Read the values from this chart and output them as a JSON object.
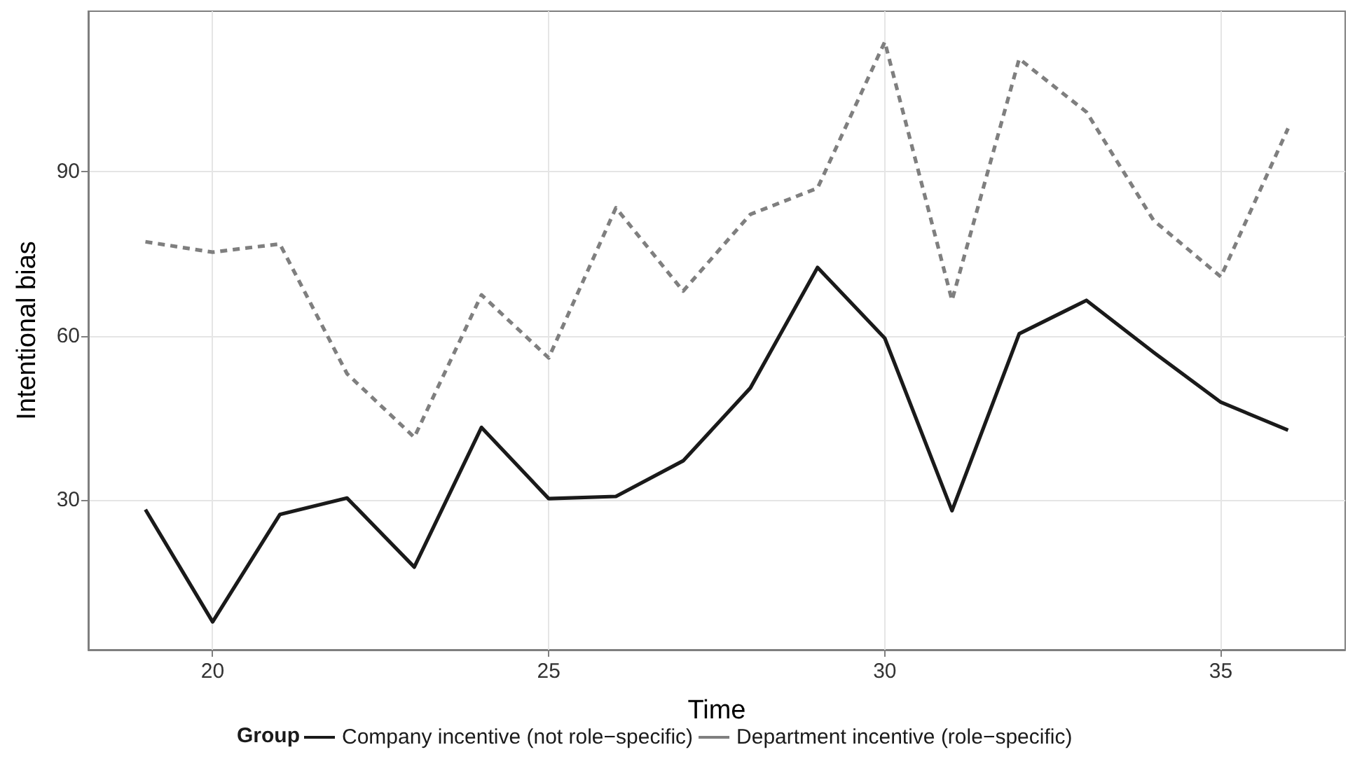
{
  "chart_data": {
    "type": "line",
    "xlabel": "Time",
    "ylabel": "Intentional bias",
    "legend_title": "Group",
    "x": [
      19,
      20,
      21,
      22,
      23,
      24,
      25,
      26,
      27,
      28,
      29,
      30,
      31,
      32,
      33,
      34,
      35,
      36
    ],
    "series": [
      {
        "name": "Company incentive (not role−specific)",
        "color": "#1a1a1a",
        "line_style": "solid",
        "values": [
          28.3,
          7.8,
          27.4,
          30.4,
          17.8,
          43.3,
          30.3,
          30.7,
          37.2,
          50.5,
          72.5,
          59.6,
          28.1,
          60.4,
          66.5,
          57,
          47.9,
          42.8
        ]
      },
      {
        "name": "Department incentive (role−specific)",
        "color": "#7f7f7f",
        "line_style": "dashed",
        "values": [
          77.2,
          75.3,
          76.8,
          53.1,
          41.5,
          67.5,
          56,
          83.4,
          68.2,
          82.2,
          87,
          113.7,
          66.5,
          110.6,
          100.9,
          81.1,
          70.8,
          97.9
        ]
      }
    ],
    "xlim": [
      18.15,
      36.85
    ],
    "xticks": [
      20,
      25,
      30,
      35
    ],
    "ylim": [
      2.7,
      119.3
    ],
    "yticks": [
      30,
      60,
      90
    ],
    "grid": true,
    "legend": "bottom",
    "marker": "none"
  }
}
